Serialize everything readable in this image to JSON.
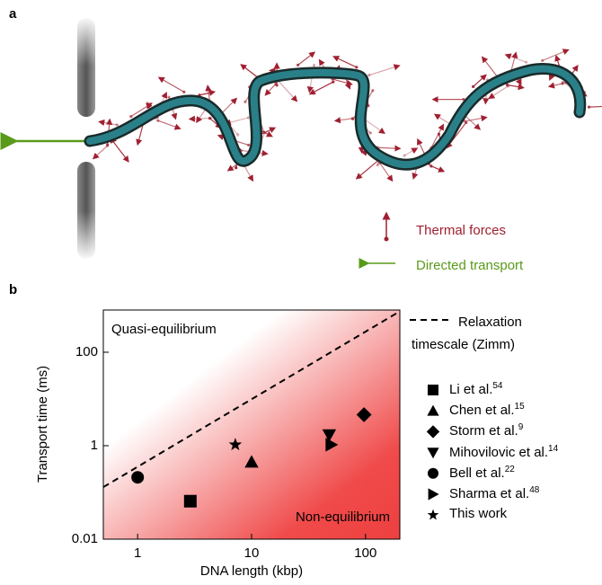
{
  "panel_a": {
    "label": "a",
    "legend": [
      "Thermal forces",
      "Directed transport"
    ]
  },
  "chart_data": {
    "type": "scatter",
    "panel_label": "b",
    "x_label": "DNA length (kbp)",
    "y_label": "Transport time (ms)",
    "xlim": [
      0.5,
      200
    ],
    "ylim": [
      0.01,
      800
    ],
    "xticks": [
      1,
      10,
      100
    ],
    "yticks": [
      0.01,
      1,
      100
    ],
    "log_x": true,
    "log_y": true,
    "annotations": [
      "Quasi-equilibrium",
      "Non-equilibrium"
    ],
    "line": {
      "name": "Relaxation timescale (Zimm)",
      "x": [
        0.5,
        200
      ],
      "values": [
        0.13,
        750
      ],
      "color": "#000000"
    },
    "series": [
      {
        "name": "Li et al.",
        "ref": "54",
        "marker": "square",
        "color": "#000000",
        "x": [
          2.9
        ],
        "values": [
          0.065
        ]
      },
      {
        "name": "Chen et al.",
        "ref": "15",
        "marker": "triangle-up",
        "color": "#000000",
        "x": [
          10
        ],
        "values": [
          0.45
        ]
      },
      {
        "name": "Storm et al.",
        "ref": "9",
        "marker": "diamond",
        "color": "#000000",
        "x": [
          97
        ],
        "values": [
          4.6
        ]
      },
      {
        "name": "Mihovilovic et al.",
        "ref": "14",
        "marker": "triangle-down",
        "color": "#000000",
        "x": [
          48
        ],
        "values": [
          1.7
        ]
      },
      {
        "name": "Bell et al.",
        "ref": "22",
        "marker": "circle",
        "color": "#000000",
        "x": [
          1
        ],
        "values": [
          0.21
        ]
      },
      {
        "name": "Sharma et al.",
        "ref": "48",
        "marker": "triangle-right",
        "color": "#000000",
        "x": [
          50
        ],
        "values": [
          1.05
        ]
      },
      {
        "name": "This work",
        "marker": "star",
        "color": "#000000",
        "x": [
          7.2
        ],
        "values": [
          1.05
        ]
      }
    ]
  }
}
